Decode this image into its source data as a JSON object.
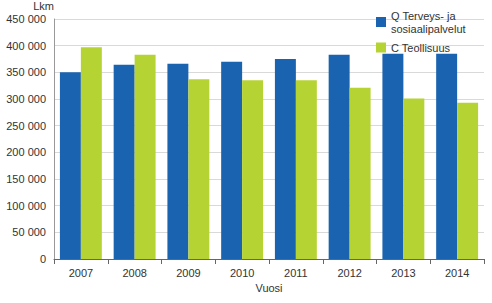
{
  "chart_data": {
    "type": "bar",
    "y_label": "Lkm",
    "x_label": "Vuosi",
    "categories": [
      "2007",
      "2008",
      "2009",
      "2010",
      "2011",
      "2012",
      "2013",
      "2014"
    ],
    "series": [
      {
        "name": "Q Terveys- ja sosiaalipalvelut",
        "color": "#1a63b0",
        "values": [
          350000,
          364000,
          366000,
          370000,
          375000,
          383000,
          385000,
          385000
        ]
      },
      {
        "name": "C Teollisuus",
        "color": "#b6d334",
        "values": [
          397000,
          383000,
          337000,
          335000,
          335000,
          321000,
          301000,
          293000
        ]
      }
    ],
    "ylim": [
      0,
      450000
    ],
    "yticks": [
      0,
      {
        "value": 50000,
        "label": "50 000"
      },
      {
        "value": 100000,
        "label": "100 000"
      },
      {
        "value": 150000,
        "label": "150 000"
      },
      {
        "value": 200000,
        "label": "200 000"
      },
      {
        "value": 250000,
        "label": "250 000"
      },
      {
        "value": 300000,
        "label": "300 000"
      },
      {
        "value": 350000,
        "label": "350 000"
      },
      {
        "value": 400000,
        "label": "400 000"
      },
      {
        "value": 450000,
        "label": "450 000"
      }
    ],
    "grid": true,
    "legend": "upper right"
  }
}
